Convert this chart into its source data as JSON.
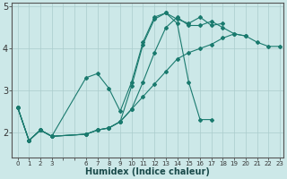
{
  "xlabel": "Humidex (Indice chaleur)",
  "bg_color": "#cce8e8",
  "grid_color": "#aacccc",
  "line_color": "#1a7a6e",
  "xlim": [
    -0.5,
    23.3
  ],
  "ylim": [
    1.4,
    5.1
  ],
  "yticks": [
    2,
    3,
    4,
    5
  ],
  "xtick_labels": [
    "0",
    "1",
    "2",
    "3",
    "",
    "",
    "6",
    "7",
    "8",
    "9",
    "10",
    "11",
    "12",
    "13",
    "14",
    "15",
    "16",
    "17",
    "18",
    "19",
    "20",
    "21",
    "22",
    "23"
  ],
  "series": [
    {
      "x": [
        0,
        1,
        2,
        3,
        6,
        7,
        8,
        9,
        10,
        11,
        12,
        13,
        14,
        15,
        16,
        17
      ],
      "y": [
        2.6,
        1.8,
        2.05,
        1.9,
        3.3,
        3.4,
        3.05,
        2.5,
        3.2,
        4.15,
        4.75,
        4.85,
        4.6,
        3.2,
        2.3,
        2.3
      ]
    },
    {
      "x": [
        0,
        1,
        2,
        3,
        6,
        7,
        8,
        9,
        10,
        11,
        12,
        13,
        14,
        15,
        16,
        17,
        18,
        19,
        20,
        21,
        22,
        23
      ],
      "y": [
        2.6,
        1.8,
        2.05,
        1.9,
        1.95,
        2.05,
        2.1,
        2.25,
        2.55,
        2.85,
        3.15,
        3.45,
        3.75,
        3.9,
        4.0,
        4.1,
        4.25,
        4.35,
        4.3,
        4.15,
        4.05,
        4.05
      ]
    },
    {
      "x": [
        0,
        1,
        2,
        3,
        6,
        7,
        8,
        9,
        10,
        11,
        12,
        13,
        14,
        15,
        16,
        17,
        18
      ],
      "y": [
        2.6,
        1.8,
        2.05,
        1.9,
        1.95,
        2.05,
        2.1,
        2.25,
        3.1,
        4.1,
        4.7,
        4.85,
        4.7,
        4.6,
        4.75,
        4.55,
        4.6
      ]
    },
    {
      "x": [
        0,
        1,
        2,
        3,
        6,
        7,
        8,
        9,
        10,
        11,
        12,
        13,
        14,
        15,
        16,
        17,
        18,
        19,
        20
      ],
      "y": [
        2.6,
        1.8,
        2.05,
        1.9,
        1.95,
        2.05,
        2.1,
        2.25,
        2.55,
        3.2,
        3.9,
        4.5,
        4.75,
        4.55,
        4.55,
        4.65,
        4.5,
        4.35,
        4.3
      ]
    }
  ]
}
